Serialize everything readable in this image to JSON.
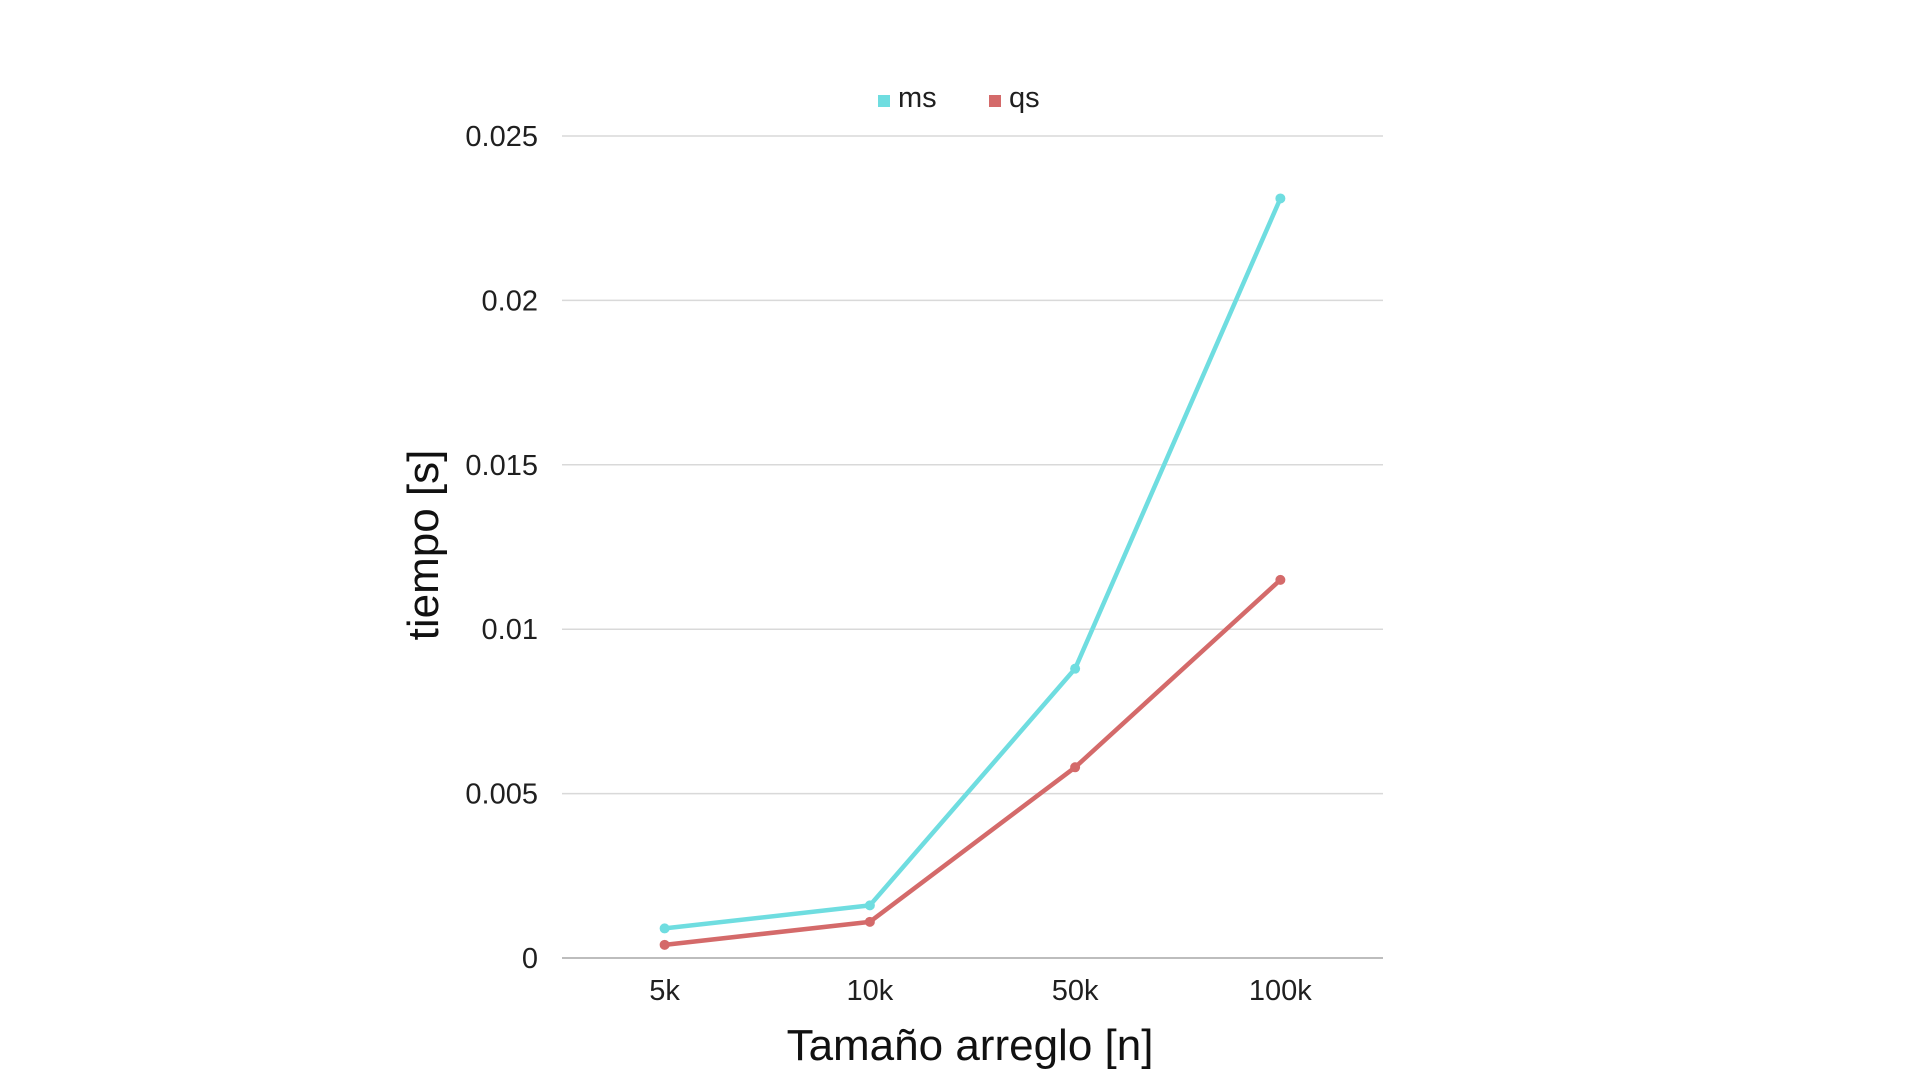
{
  "chart_data": {
    "type": "line",
    "categories": [
      "5k",
      "10k",
      "50k",
      "100k"
    ],
    "series": [
      {
        "name": "ms",
        "color": "#6fdde0",
        "values": [
          0.0009,
          0.0016,
          0.0088,
          0.0231
        ]
      },
      {
        "name": "qs",
        "color": "#d46a6a",
        "values": [
          0.0004,
          0.0011,
          0.0058,
          0.0115
        ]
      }
    ],
    "title": "",
    "xlabel": "Tamaño arreglo [n]",
    "ylabel": "tiempo [s]",
    "ylim": [
      0,
      0.025
    ],
    "yticks": [
      {
        "value": 0,
        "label": "0"
      },
      {
        "value": 0.005,
        "label": "0.005"
      },
      {
        "value": 0.01,
        "label": "0.01"
      },
      {
        "value": 0.015,
        "label": "0.015"
      },
      {
        "value": 0.02,
        "label": "0.02"
      },
      {
        "value": 0.025,
        "label": "0.025"
      }
    ],
    "grid": true,
    "legend_position": "top-center"
  }
}
